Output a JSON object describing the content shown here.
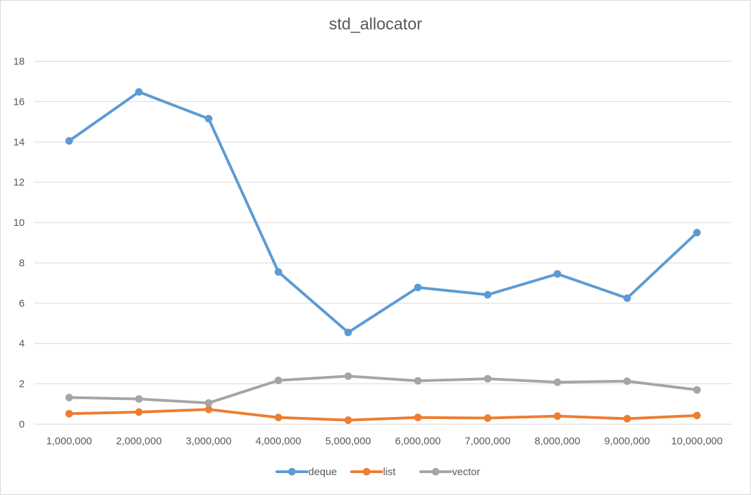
{
  "chart_data": {
    "type": "line",
    "title": "std_allocator",
    "xlabel": "",
    "ylabel": "",
    "categories": [
      "1,000,000",
      "2,000,000",
      "3,000,000",
      "4,000,000",
      "5,000,000",
      "6,000,000",
      "7,000,000",
      "8,000,000",
      "9,000,000",
      "10,000,000"
    ],
    "ylim": [
      0,
      18
    ],
    "yticks": [
      "0",
      "2",
      "4",
      "6",
      "8",
      "10",
      "12",
      "14",
      "16",
      "18"
    ],
    "grid": true,
    "legend_position": "bottom",
    "series": [
      {
        "name": "deque",
        "color": "#5b9bd5",
        "values": [
          14.05,
          16.48,
          15.15,
          7.55,
          4.55,
          6.78,
          6.42,
          7.45,
          6.25,
          9.5
        ]
      },
      {
        "name": "list",
        "color": "#ed7d31",
        "values": [
          0.52,
          0.6,
          0.73,
          0.33,
          0.2,
          0.33,
          0.3,
          0.4,
          0.27,
          0.43
        ]
      },
      {
        "name": "vector",
        "color": "#a5a5a5",
        "values": [
          1.32,
          1.25,
          1.05,
          2.17,
          2.38,
          2.15,
          2.25,
          2.08,
          2.13,
          1.7
        ]
      }
    ]
  }
}
